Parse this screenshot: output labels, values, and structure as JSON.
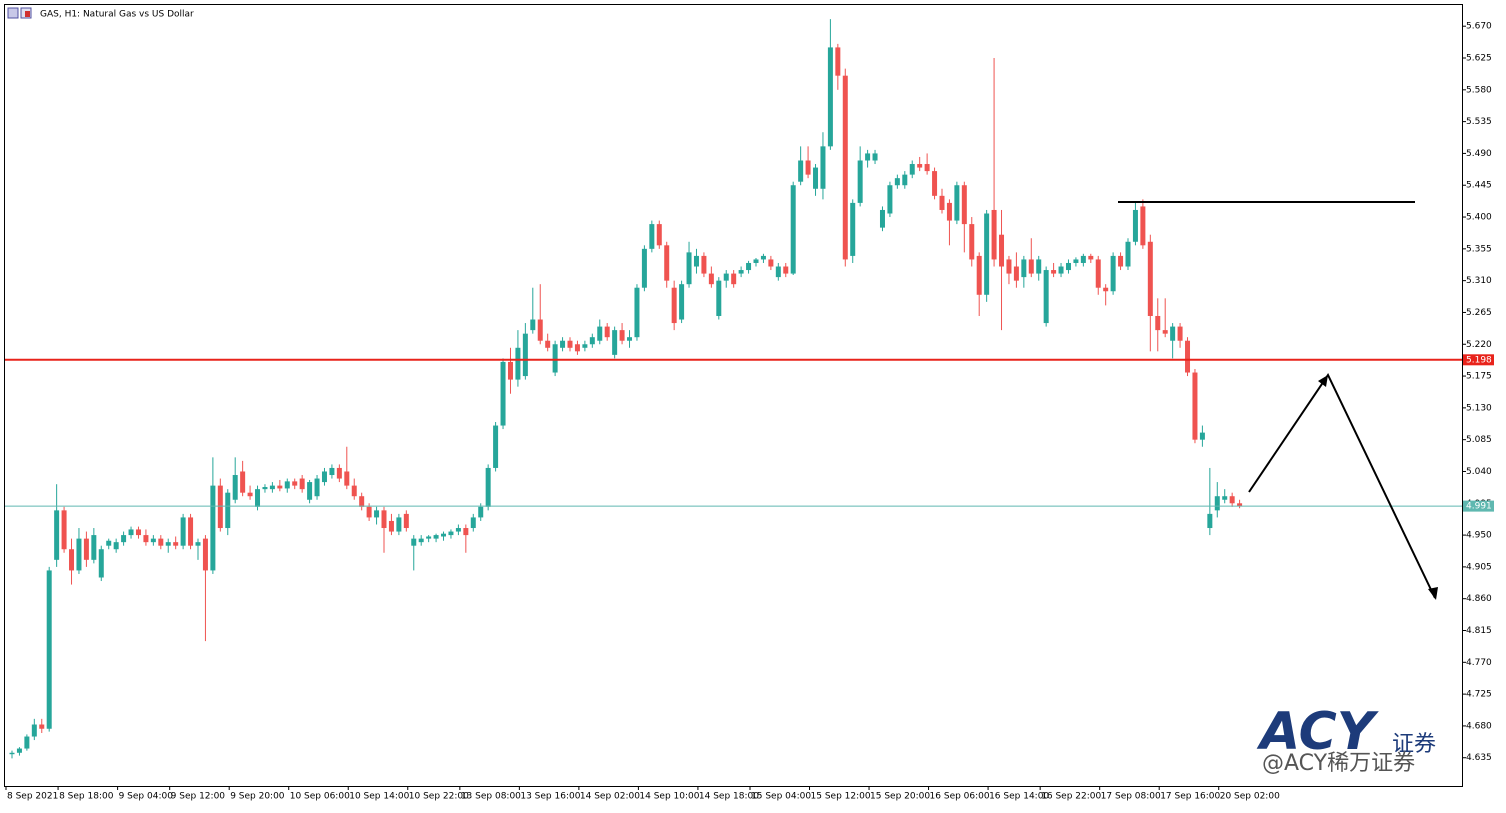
{
  "chart_data": {
    "type": "candlestick",
    "title": "GAS, H1:  Natural Gas vs  US Dollar",
    "up_color": "#26a69a",
    "down_color": "#ef5350",
    "ylim": [
      4.595,
      5.7
    ],
    "yticks": [
      4.635,
      {
        "value": 4.68,
        "label": "4.680"
      },
      4.725,
      {
        "value": 4.77,
        "label": "4.770"
      },
      4.815,
      {
        "value": 4.86,
        "label": "4.860"
      },
      4.905,
      {
        "value": 4.95,
        "label": "4.950"
      },
      4.995,
      {
        "value": 5.04,
        "label": "5.040"
      },
      5.085,
      {
        "value": 5.13,
        "label": "5.130"
      },
      5.175,
      {
        "value": 5.22,
        "label": "5.220"
      },
      5.265,
      {
        "value": 5.31,
        "label": "5.310"
      },
      5.355,
      {
        "value": 5.4,
        "label": "5.400"
      },
      5.445,
      {
        "value": 5.49,
        "label": "5.490"
      },
      5.535,
      {
        "value": 5.58,
        "label": "5.580"
      },
      5.625,
      {
        "value": 5.67,
        "label": "5.670"
      }
    ],
    "hlines": [
      {
        "value": 5.198,
        "color": "#e8231b"
      },
      {
        "value": 4.991,
        "color": "#5fb8b0"
      }
    ],
    "watermark": [
      "ACY",
      "证券",
      "@ACY稀万证券"
    ],
    "categories": [
      "8 Sep 2021",
      null,
      null,
      null,
      null,
      null,
      null,
      "8 Sep 18:00",
      null,
      null,
      null,
      null,
      null,
      null,
      null,
      "9 Sep 04:00",
      null,
      null,
      null,
      null,
      null,
      null,
      "9 Sep 12:00",
      null,
      null,
      null,
      null,
      null,
      null,
      null,
      "9 Sep 20:00",
      null,
      null,
      null,
      null,
      null,
      null,
      null,
      "10 Sep 06:00",
      null,
      null,
      null,
      null,
      null,
      null,
      null,
      "10 Sep 14:00",
      null,
      null,
      null,
      null,
      null,
      null,
      null,
      "10 Sep 22:00",
      null,
      null,
      null,
      null,
      null,
      null,
      "13 Sep 08:00",
      null,
      null,
      null,
      null,
      null,
      null,
      null,
      "13 Sep 16:00",
      null,
      null,
      null,
      null,
      null,
      null,
      null,
      "14 Sep 02:00",
      null,
      null,
      null,
      null,
      null,
      null,
      null,
      "14 Sep 10:00",
      null,
      null,
      null,
      null,
      null,
      null,
      null,
      "14 Sep 18:00",
      null,
      null,
      null,
      null,
      null,
      null,
      "15 Sep 04:00",
      null,
      null,
      null,
      null,
      null,
      null,
      null,
      "15 Sep 12:00",
      null,
      null,
      null,
      null,
      null,
      null,
      null,
      "15 Sep 20:00",
      null,
      null,
      null,
      null,
      null,
      null,
      null,
      "16 Sep 06:00",
      null,
      null,
      null,
      null,
      null,
      null,
      null,
      "16 Sep 14:00",
      null,
      null,
      null,
      null,
      null,
      null,
      "16 Sep 22:00",
      null,
      null,
      null,
      null,
      null,
      null,
      null,
      "17 Sep 08:00",
      null,
      null,
      null,
      null,
      null,
      null,
      null,
      "17 Sep 16:00",
      null,
      null,
      null,
      null,
      null,
      null,
      null,
      "20 Sep 02:00",
      null,
      null
    ],
    "ohlc": [
      [
        4.64,
        4.645,
        4.634,
        4.642
      ],
      [
        4.642,
        4.65,
        4.638,
        4.648
      ],
      [
        4.648,
        4.668,
        4.645,
        4.665
      ],
      [
        4.665,
        4.69,
        4.66,
        4.682
      ],
      [
        4.682,
        4.69,
        4.67,
        4.676
      ],
      [
        4.676,
        4.905,
        4.672,
        4.9
      ],
      [
        4.915,
        5.022,
        4.905,
        4.985
      ],
      [
        4.985,
        4.99,
        4.925,
        4.93
      ],
      [
        4.93,
        4.945,
        4.88,
        4.9
      ],
      [
        4.9,
        4.96,
        4.895,
        4.945
      ],
      [
        4.945,
        4.955,
        4.905,
        4.915
      ],
      [
        4.915,
        4.96,
        4.91,
        4.95
      ],
      [
        4.89,
        4.935,
        4.885,
        4.93
      ],
      [
        4.935,
        4.945,
        4.93,
        4.942
      ],
      [
        4.93,
        4.945,
        4.925,
        4.94
      ],
      [
        4.94,
        4.955,
        4.935,
        4.95
      ],
      [
        4.95,
        4.962,
        4.945,
        4.958
      ],
      [
        4.958,
        4.962,
        4.945,
        4.95
      ],
      [
        4.95,
        4.958,
        4.935,
        4.94
      ],
      [
        4.94,
        4.95,
        4.935,
        4.945
      ],
      [
        4.945,
        4.95,
        4.93,
        4.935
      ],
      [
        4.935,
        4.945,
        4.925,
        4.94
      ],
      [
        4.94,
        4.948,
        4.93,
        4.935
      ],
      [
        4.935,
        4.98,
        4.93,
        4.975
      ],
      [
        4.975,
        4.98,
        4.93,
        4.935
      ],
      [
        4.935,
        4.945,
        4.915,
        4.94
      ],
      [
        4.945,
        4.95,
        4.8,
        4.9
      ],
      [
        4.9,
        5.06,
        4.895,
        5.02
      ],
      [
        5.02,
        5.03,
        4.955,
        4.96
      ],
      [
        4.96,
        5.015,
        4.95,
        5.01
      ],
      [
        5.0,
        5.06,
        4.995,
        5.035
      ],
      [
        5.04,
        5.055,
        5.005,
        5.01
      ],
      [
        5.01,
        5.02,
        5.0,
        5.005
      ],
      [
        4.99,
        5.02,
        4.985,
        5.015
      ],
      [
        5.015,
        5.022,
        5.01,
        5.018
      ],
      [
        5.015,
        5.025,
        5.01,
        5.02
      ],
      [
        5.02,
        5.028,
        5.012,
        5.016
      ],
      [
        5.016,
        5.03,
        5.01,
        5.026
      ],
      [
        5.026,
        5.03,
        5.015,
        5.02
      ],
      [
        5.03,
        5.035,
        5.01,
        5.015
      ],
      [
        5.0,
        5.028,
        4.995,
        5.025
      ],
      [
        5.005,
        5.035,
        5.0,
        5.03
      ],
      [
        5.025,
        5.045,
        5.02,
        5.04
      ],
      [
        5.035,
        5.05,
        5.03,
        5.045
      ],
      [
        5.045,
        5.05,
        5.025,
        5.03
      ],
      [
        5.04,
        5.075,
        5.015,
        5.02
      ],
      [
        5.02,
        5.03,
        5.0,
        5.005
      ],
      [
        5.005,
        5.01,
        4.985,
        4.99
      ],
      [
        4.99,
        4.995,
        4.97,
        4.975
      ],
      [
        4.975,
        4.99,
        4.965,
        4.985
      ],
      [
        4.985,
        4.99,
        4.925,
        4.96
      ],
      [
        4.97,
        4.98,
        4.95,
        4.955
      ],
      [
        4.955,
        4.98,
        4.95,
        4.975
      ],
      [
        4.98,
        4.985,
        4.955,
        4.96
      ],
      [
        4.935,
        4.95,
        4.9,
        4.945
      ],
      [
        4.94,
        4.95,
        4.935,
        4.945
      ],
      [
        4.945,
        4.95,
        4.94,
        4.948
      ],
      [
        4.945,
        4.952,
        4.94,
        4.95
      ],
      [
        4.948,
        4.955,
        4.942,
        4.952
      ],
      [
        4.95,
        4.958,
        4.945,
        4.955
      ],
      [
        4.955,
        4.965,
        4.95,
        4.96
      ],
      [
        4.96,
        4.965,
        4.925,
        4.95
      ],
      [
        4.96,
        4.98,
        4.955,
        4.975
      ],
      [
        4.975,
        4.995,
        4.97,
        4.99
      ],
      [
        4.99,
        5.05,
        4.985,
        5.045
      ],
      [
        5.045,
        5.11,
        5.04,
        5.105
      ],
      [
        5.105,
        5.2,
        5.1,
        5.195
      ],
      [
        5.195,
        5.215,
        5.15,
        5.17
      ],
      [
        5.17,
        5.24,
        5.16,
        5.215
      ],
      [
        5.175,
        5.25,
        5.17,
        5.235
      ],
      [
        5.24,
        5.3,
        5.235,
        5.255
      ],
      [
        5.255,
        5.305,
        5.22,
        5.225
      ],
      [
        5.225,
        5.235,
        5.21,
        5.215
      ],
      [
        5.18,
        5.225,
        5.175,
        5.22
      ],
      [
        5.215,
        5.23,
        5.21,
        5.225
      ],
      [
        5.225,
        5.23,
        5.21,
        5.215
      ],
      [
        5.22,
        5.225,
        5.205,
        5.21
      ],
      [
        5.215,
        5.225,
        5.21,
        5.22
      ],
      [
        5.22,
        5.235,
        5.215,
        5.23
      ],
      [
        5.225,
        5.255,
        5.22,
        5.245
      ],
      [
        5.245,
        5.25,
        5.225,
        5.23
      ],
      [
        5.205,
        5.245,
        5.2,
        5.24
      ],
      [
        5.24,
        5.25,
        5.22,
        5.225
      ],
      [
        5.225,
        5.24,
        5.215,
        5.23
      ],
      [
        5.23,
        5.305,
        5.225,
        5.3
      ],
      [
        5.3,
        5.36,
        5.295,
        5.355
      ],
      [
        5.355,
        5.395,
        5.35,
        5.39
      ],
      [
        5.39,
        5.395,
        5.355,
        5.36
      ],
      [
        5.36,
        5.365,
        5.3,
        5.31
      ],
      [
        5.3,
        5.31,
        5.24,
        5.25
      ],
      [
        5.255,
        5.31,
        5.25,
        5.305
      ],
      [
        5.305,
        5.365,
        5.3,
        5.35
      ],
      [
        5.33,
        5.355,
        5.32,
        5.345
      ],
      [
        5.345,
        5.35,
        5.315,
        5.32
      ],
      [
        5.32,
        5.33,
        5.3,
        5.305
      ],
      [
        5.26,
        5.315,
        5.255,
        5.31
      ],
      [
        5.31,
        5.325,
        5.3,
        5.32
      ],
      [
        5.32,
        5.325,
        5.3,
        5.305
      ],
      [
        5.32,
        5.33,
        5.315,
        5.325
      ],
      [
        5.325,
        5.338,
        5.32,
        5.335
      ],
      [
        5.335,
        5.342,
        5.33,
        5.34
      ],
      [
        5.34,
        5.348,
        5.335,
        5.345
      ],
      [
        5.34,
        5.345,
        5.325,
        5.33
      ],
      [
        5.315,
        5.335,
        5.31,
        5.33
      ],
      [
        5.33,
        5.335,
        5.315,
        5.32
      ],
      [
        5.32,
        5.45,
        5.318,
        5.445
      ],
      [
        5.45,
        5.5,
        5.445,
        5.48
      ],
      [
        5.48,
        5.5,
        5.455,
        5.46
      ],
      [
        5.44,
        5.475,
        5.43,
        5.47
      ],
      [
        5.44,
        5.52,
        5.425,
        5.5
      ],
      [
        5.5,
        5.68,
        5.495,
        5.64
      ],
      [
        5.64,
        5.645,
        5.58,
        5.6
      ],
      [
        5.6,
        5.61,
        5.33,
        5.34
      ],
      [
        5.345,
        5.425,
        5.335,
        5.42
      ],
      [
        5.42,
        5.5,
        5.415,
        5.48
      ],
      [
        5.48,
        5.495,
        5.47,
        5.49
      ],
      [
        5.48,
        5.495,
        5.475,
        5.49
      ],
      [
        5.385,
        5.415,
        5.38,
        5.41
      ],
      [
        5.405,
        5.45,
        5.4,
        5.445
      ],
      [
        5.445,
        5.46,
        5.44,
        5.455
      ],
      [
        5.445,
        5.465,
        5.44,
        5.46
      ],
      [
        5.46,
        5.48,
        5.455,
        5.475
      ],
      [
        5.475,
        5.485,
        5.465,
        5.47
      ],
      [
        5.475,
        5.49,
        5.46,
        5.465
      ],
      [
        5.465,
        5.47,
        5.425,
        5.43
      ],
      [
        5.43,
        5.44,
        5.405,
        5.41
      ],
      [
        5.42,
        5.425,
        5.36,
        5.395
      ],
      [
        5.395,
        5.45,
        5.39,
        5.445
      ],
      [
        5.445,
        5.45,
        5.35,
        5.39
      ],
      [
        5.39,
        5.4,
        5.33,
        5.34
      ],
      [
        5.345,
        5.35,
        5.26,
        5.29
      ],
      [
        5.29,
        5.41,
        5.28,
        5.405
      ],
      [
        5.41,
        5.625,
        5.33,
        5.34
      ],
      [
        5.375,
        5.41,
        5.24,
        5.33
      ],
      [
        5.34,
        5.345,
        5.305,
        5.32
      ],
      [
        5.33,
        5.35,
        5.3,
        5.31
      ],
      [
        5.315,
        5.345,
        5.3,
        5.34
      ],
      [
        5.34,
        5.37,
        5.315,
        5.32
      ],
      [
        5.32,
        5.345,
        5.31,
        5.34
      ],
      [
        5.25,
        5.33,
        5.245,
        5.325
      ],
      [
        5.325,
        5.335,
        5.315,
        5.32
      ],
      [
        5.32,
        5.335,
        5.315,
        5.33
      ],
      [
        5.325,
        5.34,
        5.32,
        5.335
      ],
      [
        5.335,
        5.343,
        5.33,
        5.34
      ],
      [
        5.335,
        5.348,
        5.33,
        5.345
      ],
      [
        5.345,
        5.348,
        5.335,
        5.34
      ],
      [
        5.34,
        5.345,
        5.29,
        5.3
      ],
      [
        5.3,
        5.305,
        5.275,
        5.295
      ],
      [
        5.295,
        5.35,
        5.29,
        5.345
      ],
      [
        5.345,
        5.35,
        5.325,
        5.33
      ],
      [
        5.33,
        5.37,
        5.325,
        5.365
      ],
      [
        5.365,
        5.42,
        5.36,
        5.41
      ],
      [
        5.415,
        5.425,
        5.355,
        5.36
      ],
      [
        5.365,
        5.375,
        5.21,
        5.26
      ],
      [
        5.26,
        5.285,
        5.21,
        5.24
      ],
      [
        5.24,
        5.285,
        5.23,
        5.235
      ],
      [
        5.225,
        5.25,
        5.2,
        5.245
      ],
      [
        5.245,
        5.25,
        5.215,
        5.225
      ],
      [
        5.225,
        5.23,
        5.175,
        5.18
      ],
      [
        5.18,
        5.185,
        5.08,
        5.085
      ],
      [
        5.085,
        5.105,
        5.075,
        5.095
      ],
      [
        4.96,
        5.045,
        4.95,
        4.98
      ],
      [
        4.985,
        5.025,
        4.975,
        5.005
      ],
      [
        5.0,
        5.015,
        4.995,
        5.005
      ],
      [
        5.005,
        5.01,
        4.99,
        4.995
      ],
      [
        4.995,
        5.0,
        4.988,
        4.991
      ]
    ]
  }
}
